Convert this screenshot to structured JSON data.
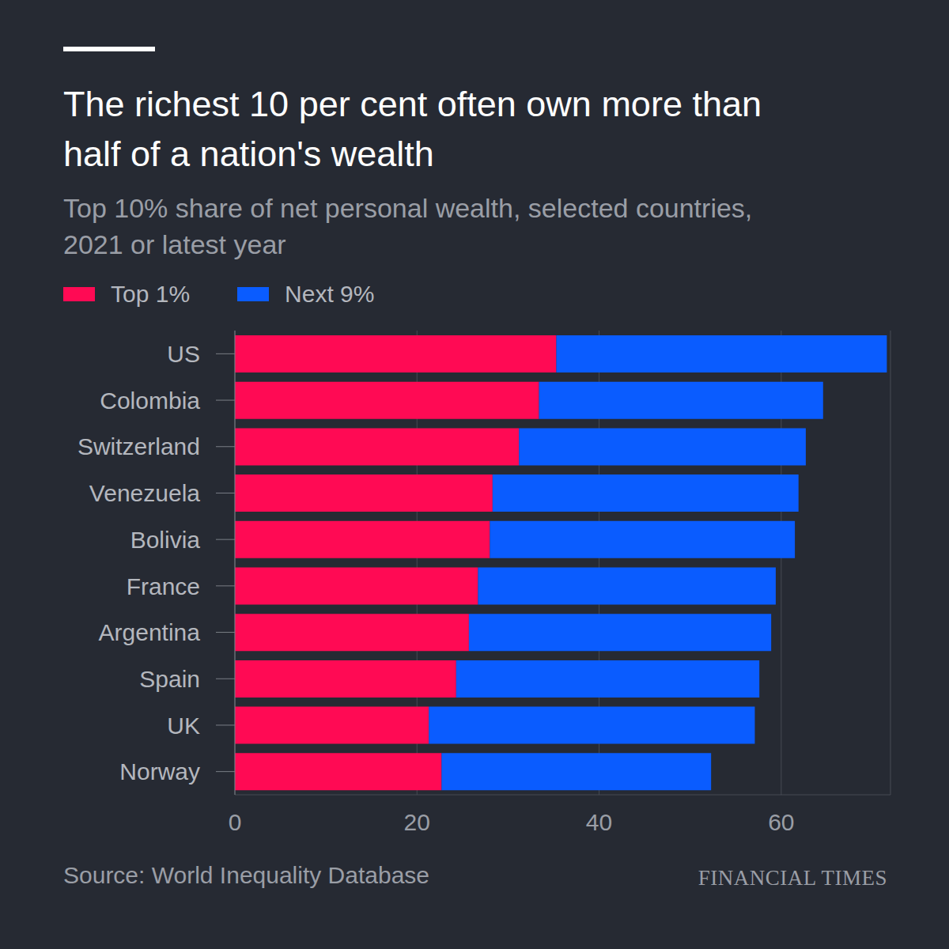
{
  "chart_data": {
    "type": "bar",
    "orientation": "horizontal",
    "stacked": true,
    "title": "The richest 10 per cent often own more than half of a nation's wealth",
    "subtitle": "Top 10% share of net personal wealth, selected countries, 2021 or latest year",
    "categories": [
      "US",
      "Colombia",
      "Switzerland",
      "Venezuela",
      "Bolivia",
      "France",
      "Argentina",
      "Spain",
      "UK",
      "Norway"
    ],
    "series": [
      {
        "name": "Top 1%",
        "color": "#ff0a54",
        "values": [
          35.3,
          33.4,
          31.2,
          28.3,
          28.0,
          26.7,
          25.7,
          24.3,
          21.3,
          22.7
        ]
      },
      {
        "name": "Next 9%",
        "color": "#0a5cff",
        "values": [
          36.3,
          31.2,
          31.5,
          33.6,
          33.5,
          32.7,
          33.2,
          33.3,
          35.8,
          29.6
        ]
      }
    ],
    "xlim": [
      0,
      72
    ],
    "xticks": [
      0,
      20,
      40,
      60
    ],
    "grid": true,
    "legend": "top-left",
    "source": "Source: World Inequality Database",
    "logo": "FINANCIAL TIMES"
  }
}
